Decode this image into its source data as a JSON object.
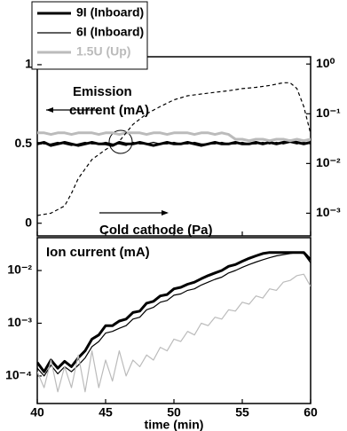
{
  "chart_data": [
    {
      "type": "line",
      "x": [
        40,
        40.5,
        41,
        41.5,
        42,
        42.5,
        43,
        43.5,
        44,
        44.5,
        45,
        45.5,
        46,
        46.5,
        47,
        47.5,
        48,
        48.5,
        49,
        49.5,
        50,
        50.5,
        51,
        51.5,
        52,
        52.5,
        53,
        53.5,
        54,
        54.5,
        55,
        55.5,
        56,
        56.5,
        57,
        57.5,
        58,
        58.5,
        59,
        59.5,
        60
      ],
      "xlim": [
        40,
        60
      ],
      "xticks": [
        40,
        45,
        50,
        55,
        60
      ],
      "ylim": [
        -0.08,
        1.05
      ],
      "yticks": [
        0,
        0.5,
        1
      ],
      "y2lim": [
        0.00035,
        1.4
      ],
      "y2log": true,
      "y2ticks": [
        {
          "value": 1,
          "label": "10⁰"
        },
        {
          "value": 0.1,
          "label": "10⁻¹"
        },
        {
          "value": 0.01,
          "label": "10⁻²"
        },
        {
          "value": 0.001,
          "label": "10⁻³"
        }
      ],
      "annotations": [
        "Emission",
        "current (mA)",
        "Cold cathode (Pa)"
      ],
      "series": [
        {
          "name": "9I (Inboard)",
          "color": "#000000",
          "line_width": 3,
          "values": [
            0.5,
            0.51,
            0.49,
            0.5,
            0.51,
            0.5,
            0.49,
            0.5,
            0.51,
            0.5,
            0.5,
            0.49,
            0.51,
            0.5,
            0.5,
            0.51,
            0.5,
            0.49,
            0.5,
            0.51,
            0.5,
            0.5,
            0.51,
            0.5,
            0.49,
            0.5,
            0.51,
            0.5,
            0.5,
            0.51,
            0.5,
            0.5,
            0.51,
            0.5,
            0.51,
            0.5,
            0.51,
            0.52,
            0.51,
            0.5,
            0.51
          ]
        },
        {
          "name": "6I (Inboard)",
          "color": "#000000",
          "line_width": 1.2,
          "values": [
            0.51,
            0.5,
            0.5,
            0.51,
            0.5,
            0.49,
            0.5,
            0.51,
            0.5,
            0.5,
            0.51,
            0.5,
            0.5,
            0.49,
            0.51,
            0.5,
            0.5,
            0.51,
            0.5,
            0.5,
            0.51,
            0.5,
            0.5,
            0.51,
            0.5,
            0.5,
            0.5,
            0.51,
            0.5,
            0.5,
            0.51,
            0.5,
            0.5,
            0.51,
            0.5,
            0.51,
            0.5,
            0.51,
            0.5,
            0.51,
            0.5
          ]
        },
        {
          "name": "1.5U (Up)",
          "color": "#bbbbbb",
          "line_width": 3,
          "values": [
            0.57,
            0.57,
            0.56,
            0.57,
            0.57,
            0.56,
            0.57,
            0.57,
            0.57,
            0.56,
            0.57,
            0.57,
            0.56,
            0.57,
            0.57,
            0.57,
            0.56,
            0.57,
            0.57,
            0.56,
            0.57,
            0.57,
            0.57,
            0.56,
            0.57,
            0.57,
            0.56,
            0.57,
            0.56,
            0.53,
            0.53,
            0.52,
            0.53,
            0.53,
            0.52,
            0.53,
            0.53,
            0.52,
            0.53,
            0.52,
            0.53
          ]
        },
        {
          "color": "#000000",
          "line_width": 1.2,
          "dashed": true,
          "axis": "y2",
          "x": [
            40,
            41,
            42,
            42.5,
            43,
            44,
            45,
            46,
            47,
            48,
            49,
            50,
            51,
            52,
            53,
            54,
            55,
            56,
            57,
            58,
            58.5,
            59,
            59.5,
            60
          ],
          "values": [
            0.0009,
            0.001,
            0.0014,
            0.0025,
            0.005,
            0.012,
            0.019,
            0.028,
            0.061,
            0.1,
            0.14,
            0.19,
            0.23,
            0.25,
            0.27,
            0.29,
            0.32,
            0.34,
            0.37,
            0.42,
            0.42,
            0.32,
            0.14,
            0.04
          ]
        }
      ]
    },
    {
      "type": "line",
      "x": [
        40,
        40.5,
        41,
        41.5,
        42,
        42.5,
        43,
        43.5,
        44,
        44.5,
        45,
        45.5,
        46,
        46.5,
        47,
        47.5,
        48,
        48.5,
        49,
        49.5,
        50,
        50.5,
        51,
        51.5,
        52,
        52.5,
        53,
        53.5,
        54,
        54.5,
        55,
        55.5,
        56,
        56.5,
        57,
        57.5,
        58,
        58.5,
        59,
        59.5,
        60
      ],
      "xlim": [
        40,
        60
      ],
      "xticks": [
        40,
        45,
        50,
        55,
        60
      ],
      "xlabel": "time (min)",
      "ylim": [
        3e-05,
        0.042
      ],
      "ylog": true,
      "yticks": [
        {
          "value": 0.01,
          "label": "10⁻²"
        },
        {
          "value": 0.001,
          "label": "10⁻³"
        },
        {
          "value": 0.0001,
          "label": "10⁻⁴"
        }
      ],
      "annotations": [
        "Ion current (mA)"
      ],
      "series": [
        {
          "color": "#000000",
          "line_width": 3,
          "values": [
            0.00018,
            0.00012,
            0.0002,
            0.00014,
            0.00019,
            0.00015,
            0.00022,
            0.0003,
            0.0005,
            0.0006,
            0.0009,
            0.0009,
            0.0011,
            0.0012,
            0.0016,
            0.0017,
            0.0024,
            0.0026,
            0.0033,
            0.0035,
            0.0045,
            0.0048,
            0.0055,
            0.006,
            0.007,
            0.008,
            0.009,
            0.01,
            0.012,
            0.013,
            0.015,
            0.017,
            0.019,
            0.021,
            0.022,
            0.022,
            0.022,
            0.022,
            0.022,
            0.022,
            0.016
          ]
        },
        {
          "color": "#000000",
          "line_width": 1.2,
          "values": [
            0.00014,
            0.0001,
            0.00016,
            0.00011,
            0.00015,
            0.00012,
            0.00016,
            0.00022,
            0.00036,
            0.00045,
            0.00065,
            0.0007,
            0.0008,
            0.0009,
            0.0012,
            0.0013,
            0.0018,
            0.002,
            0.0025,
            0.0027,
            0.0034,
            0.0036,
            0.0042,
            0.0045,
            0.0053,
            0.006,
            0.0068,
            0.0075,
            0.009,
            0.01,
            0.0115,
            0.013,
            0.0145,
            0.016,
            0.0175,
            0.019,
            0.02,
            0.021,
            0.022,
            0.021,
            0.014
          ]
        },
        {
          "color": "#bbbbbb",
          "line_width": 1.2,
          "values": [
            0.00012,
            6e-05,
            0.0002,
            5e-05,
            0.00015,
            6e-05,
            0.00025,
            5e-05,
            0.0003,
            6e-05,
            0.0002,
            8e-05,
            0.0003,
            0.0001,
            0.0002,
            0.00015,
            0.00025,
            0.0002,
            0.00035,
            0.0003,
            0.0005,
            0.00045,
            0.0007,
            0.0006,
            0.001,
            0.0009,
            0.0013,
            0.0012,
            0.0018,
            0.0017,
            0.0025,
            0.0023,
            0.0033,
            0.003,
            0.0045,
            0.0042,
            0.006,
            0.0065,
            0.008,
            0.0085,
            0.005
          ]
        }
      ]
    }
  ]
}
